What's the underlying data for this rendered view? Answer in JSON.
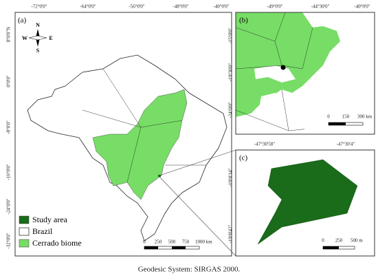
{
  "panel_a": {
    "label": "(a)",
    "lon_labels": [
      "-72°0'0\"",
      "-64°0'0\"",
      "-56°0'0\"",
      "-48°0'0\"",
      "-40°0'0\""
    ],
    "lat_labels": [
      "8°0'0\"N",
      "0°0'0\"",
      "-8°0'0\"",
      "-16°0'0\"",
      "-24°0'0\"",
      "-32°0'0\""
    ],
    "scale_labels": [
      "0",
      "250",
      "500",
      "750",
      "1000 km"
    ]
  },
  "panel_b": {
    "label": "(b)",
    "lon_labels": [
      "-49°0'0\"",
      "-44°30'0\"",
      "-40°0'0\""
    ],
    "lat_labels": [
      "-15°0'0\"",
      "-19°30'0\"",
      "-24°0'0\""
    ],
    "scale_labels": [
      "0",
      "150",
      "300 km"
    ]
  },
  "panel_c": {
    "label": "(c)",
    "lon_labels": [
      "-47°30'58\"",
      "-47°30'4\""
    ],
    "lat_labels": [
      "-19°0'14\"",
      "-19°0'42\""
    ],
    "scale_labels": [
      "0",
      "250",
      "500 m"
    ]
  },
  "north_arrow": {
    "n": "N",
    "s": "S",
    "w": "W",
    "e": "E"
  },
  "legend": [
    "Study area",
    "Brazil",
    "Cerrado biome"
  ],
  "caption": "Geodesic System: SIRGAS 2000."
}
